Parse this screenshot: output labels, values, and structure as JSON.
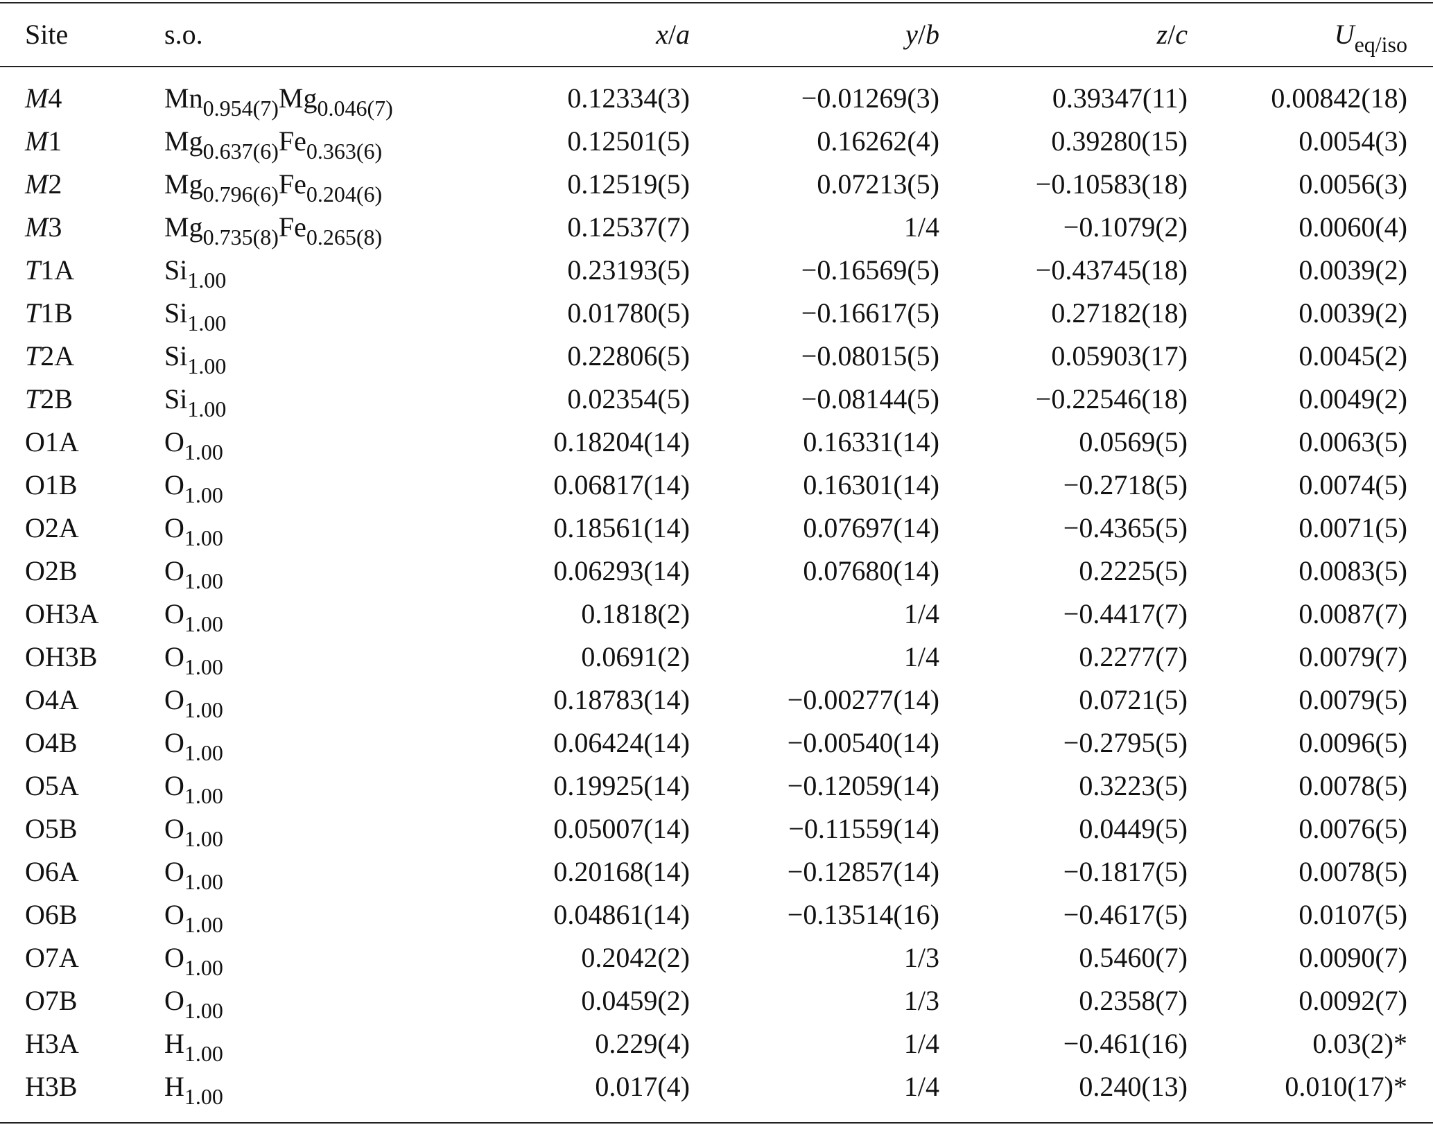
{
  "table": {
    "columns": [
      [
        {
          "t": "Site"
        }
      ],
      [
        {
          "t": "s.o."
        }
      ],
      [
        {
          "t": "x",
          "s": "i"
        },
        {
          "t": "/"
        },
        {
          "t": "a",
          "s": "i"
        }
      ],
      [
        {
          "t": "y",
          "s": "i"
        },
        {
          "t": "/"
        },
        {
          "t": "b",
          "s": "i"
        }
      ],
      [
        {
          "t": "z",
          "s": "i"
        },
        {
          "t": "/"
        },
        {
          "t": "c",
          "s": "i"
        }
      ],
      [
        {
          "t": "U",
          "s": "i"
        },
        {
          "t": "eq/iso",
          "s": "sub"
        }
      ]
    ],
    "rows": [
      [
        [
          {
            "t": "M",
            "s": "i"
          },
          {
            "t": "4"
          }
        ],
        [
          {
            "t": "Mn"
          },
          {
            "t": "0.954(7)",
            "s": "sub"
          },
          {
            "t": "Mg"
          },
          {
            "t": "0.046(7)",
            "s": "sub"
          }
        ],
        "0.12334(3)",
        "−0.01269(3)",
        "0.39347(11)",
        "0.00842(18)"
      ],
      [
        [
          {
            "t": "M",
            "s": "i"
          },
          {
            "t": "1"
          }
        ],
        [
          {
            "t": "Mg"
          },
          {
            "t": "0.637(6)",
            "s": "sub"
          },
          {
            "t": "Fe"
          },
          {
            "t": "0.363(6)",
            "s": "sub"
          }
        ],
        "0.12501(5)",
        "0.16262(4)",
        "0.39280(15)",
        "0.0054(3)"
      ],
      [
        [
          {
            "t": "M",
            "s": "i"
          },
          {
            "t": "2"
          }
        ],
        [
          {
            "t": "Mg"
          },
          {
            "t": "0.796(6)",
            "s": "sub"
          },
          {
            "t": "Fe"
          },
          {
            "t": "0.204(6)",
            "s": "sub"
          }
        ],
        "0.12519(5)",
        "0.07213(5)",
        "−0.10583(18)",
        "0.0056(3)"
      ],
      [
        [
          {
            "t": "M",
            "s": "i"
          },
          {
            "t": "3"
          }
        ],
        [
          {
            "t": "Mg"
          },
          {
            "t": "0.735(8)",
            "s": "sub"
          },
          {
            "t": "Fe"
          },
          {
            "t": "0.265(8)",
            "s": "sub"
          }
        ],
        "0.12537(7)",
        "1/4",
        "−0.1079(2)",
        "0.0060(4)"
      ],
      [
        [
          {
            "t": "T",
            "s": "i"
          },
          {
            "t": "1A"
          }
        ],
        [
          {
            "t": "Si"
          },
          {
            "t": "1.00",
            "s": "sub"
          }
        ],
        "0.23193(5)",
        "−0.16569(5)",
        "−0.43745(18)",
        "0.0039(2)"
      ],
      [
        [
          {
            "t": "T",
            "s": "i"
          },
          {
            "t": "1B"
          }
        ],
        [
          {
            "t": "Si"
          },
          {
            "t": "1.00",
            "s": "sub"
          }
        ],
        "0.01780(5)",
        "−0.16617(5)",
        "0.27182(18)",
        "0.0039(2)"
      ],
      [
        [
          {
            "t": "T",
            "s": "i"
          },
          {
            "t": "2A"
          }
        ],
        [
          {
            "t": "Si"
          },
          {
            "t": "1.00",
            "s": "sub"
          }
        ],
        "0.22806(5)",
        "−0.08015(5)",
        "0.05903(17)",
        "0.0045(2)"
      ],
      [
        [
          {
            "t": "T",
            "s": "i"
          },
          {
            "t": "2B"
          }
        ],
        [
          {
            "t": "Si"
          },
          {
            "t": "1.00",
            "s": "sub"
          }
        ],
        "0.02354(5)",
        "−0.08144(5)",
        "−0.22546(18)",
        "0.0049(2)"
      ],
      [
        "O1A",
        [
          {
            "t": "O"
          },
          {
            "t": "1.00",
            "s": "sub"
          }
        ],
        "0.18204(14)",
        "0.16331(14)",
        "0.0569(5)",
        "0.0063(5)"
      ],
      [
        "O1B",
        [
          {
            "t": "O"
          },
          {
            "t": "1.00",
            "s": "sub"
          }
        ],
        "0.06817(14)",
        "0.16301(14)",
        "−0.2718(5)",
        "0.0074(5)"
      ],
      [
        "O2A",
        [
          {
            "t": "O"
          },
          {
            "t": "1.00",
            "s": "sub"
          }
        ],
        "0.18561(14)",
        "0.07697(14)",
        "−0.4365(5)",
        "0.0071(5)"
      ],
      [
        "O2B",
        [
          {
            "t": "O"
          },
          {
            "t": "1.00",
            "s": "sub"
          }
        ],
        "0.06293(14)",
        "0.07680(14)",
        "0.2225(5)",
        "0.0083(5)"
      ],
      [
        "OH3A",
        [
          {
            "t": "O"
          },
          {
            "t": "1.00",
            "s": "sub"
          }
        ],
        "0.1818(2)",
        "1/4",
        "−0.4417(7)",
        "0.0087(7)"
      ],
      [
        "OH3B",
        [
          {
            "t": "O"
          },
          {
            "t": "1.00",
            "s": "sub"
          }
        ],
        "0.0691(2)",
        "1/4",
        "0.2277(7)",
        "0.0079(7)"
      ],
      [
        "O4A",
        [
          {
            "t": "O"
          },
          {
            "t": "1.00",
            "s": "sub"
          }
        ],
        "0.18783(14)",
        "−0.00277(14)",
        "0.0721(5)",
        "0.0079(5)"
      ],
      [
        "O4B",
        [
          {
            "t": "O"
          },
          {
            "t": "1.00",
            "s": "sub"
          }
        ],
        "0.06424(14)",
        "−0.00540(14)",
        "−0.2795(5)",
        "0.0096(5)"
      ],
      [
        "O5A",
        [
          {
            "t": "O"
          },
          {
            "t": "1.00",
            "s": "sub"
          }
        ],
        "0.19925(14)",
        "−0.12059(14)",
        "0.3223(5)",
        "0.0078(5)"
      ],
      [
        "O5B",
        [
          {
            "t": "O"
          },
          {
            "t": "1.00",
            "s": "sub"
          }
        ],
        "0.05007(14)",
        "−0.11559(14)",
        "0.0449(5)",
        "0.0076(5)"
      ],
      [
        "O6A",
        [
          {
            "t": "O"
          },
          {
            "t": "1.00",
            "s": "sub"
          }
        ],
        "0.20168(14)",
        "−0.12857(14)",
        "−0.1817(5)",
        "0.0078(5)"
      ],
      [
        "O6B",
        [
          {
            "t": "O"
          },
          {
            "t": "1.00",
            "s": "sub"
          }
        ],
        "0.04861(14)",
        "−0.13514(16)",
        "−0.4617(5)",
        "0.0107(5)"
      ],
      [
        "O7A",
        [
          {
            "t": "O"
          },
          {
            "t": "1.00",
            "s": "sub"
          }
        ],
        "0.2042(2)",
        "1/3",
        "0.5460(7)",
        "0.0090(7)"
      ],
      [
        "O7B",
        [
          {
            "t": "O"
          },
          {
            "t": "1.00",
            "s": "sub"
          }
        ],
        "0.0459(2)",
        "1/3",
        "0.2358(7)",
        "0.0092(7)"
      ],
      [
        "H3A",
        [
          {
            "t": "H"
          },
          {
            "t": "1.00",
            "s": "sub"
          }
        ],
        "0.229(4)",
        "1/4",
        "−0.461(16)",
        "0.03(2)*"
      ],
      [
        "H3B",
        [
          {
            "t": "H"
          },
          {
            "t": "1.00",
            "s": "sub"
          }
        ],
        "0.017(4)",
        "1/4",
        "0.240(13)",
        "0.010(17)*"
      ]
    ]
  }
}
